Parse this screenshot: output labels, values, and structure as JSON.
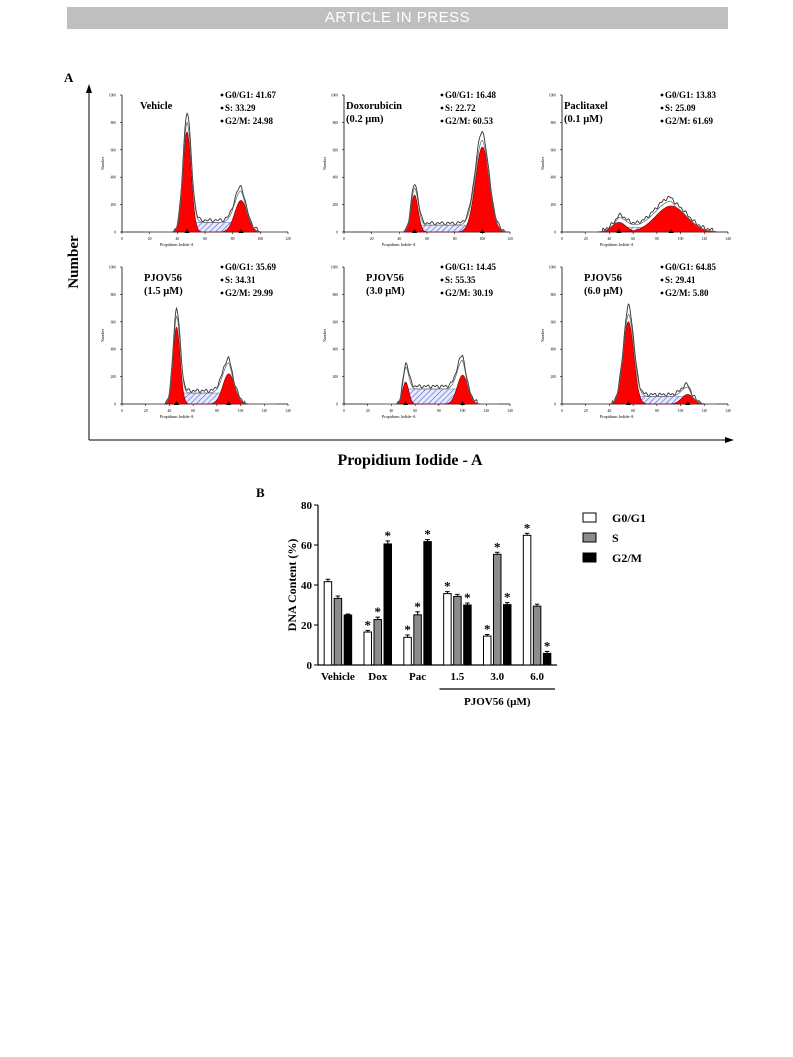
{
  "banner": "ARTICLE IN PRESS",
  "figure": {
    "panel_a_label": "A",
    "panel_b_label": "B",
    "a_ylabel": "Number",
    "a_xlabel": "Propidium Iodide - A",
    "hist_ylabel": "Number",
    "hist_xlabel": "Propidium Iodide-A",
    "hist_yticks": [
      "0",
      "200",
      "400",
      "600",
      "800",
      "1000"
    ],
    "hist_xticks_120": [
      "0",
      "20",
      "40",
      "60",
      "80",
      "100",
      "120"
    ],
    "hist_xticks_140": [
      "0",
      "20",
      "40",
      "60",
      "80",
      "100",
      "120",
      "140"
    ],
    "panels": [
      {
        "title": [
          "Vehicle"
        ],
        "stats": [
          "G0/G1: 41.67",
          "S: 33.29",
          "G2/M: 24.98"
        ],
        "axis_max": 120,
        "g1": {
          "mean": 47,
          "peak": 730,
          "sd": 3.0
        },
        "g2": {
          "mean": 86,
          "peak": 230,
          "sd": 4.5
        },
        "s_level": 70
      },
      {
        "title": [
          "Doxorubicin",
          "(0.2 µm)"
        ],
        "stats": [
          "G0/G1: 16.48",
          "S: 22.72",
          "G2/M: 60.53"
        ],
        "axis_max": 120,
        "g1": {
          "mean": 51,
          "peak": 270,
          "sd": 2.6
        },
        "g2": {
          "mean": 100,
          "peak": 620,
          "sd": 5.0
        },
        "s_level": 50
      },
      {
        "title": [
          "Paclitaxel",
          "(0.1 µM)"
        ],
        "stats": [
          "G0/G1: 13.83",
          "S: 25.09",
          "G2/M: 61.69"
        ],
        "axis_max": 140,
        "g1": {
          "mean": 48,
          "peak": 70,
          "sd": 6.0
        },
        "g2": {
          "mean": 92,
          "peak": 190,
          "sd": 13.0
        },
        "s_level": 35
      },
      {
        "title": [
          "PJOV56",
          "(1.5 µM)"
        ],
        "stats": [
          "G0/G1: 35.69",
          "S: 34.31",
          "G2/M: 29.99"
        ],
        "axis_max": 140,
        "g1": {
          "mean": 46,
          "peak": 560,
          "sd": 3.0
        },
        "g2": {
          "mean": 90,
          "peak": 220,
          "sd": 5.0
        },
        "s_level": 80
      },
      {
        "title": [
          "PJOV56",
          "(3.0 µM)"
        ],
        "stats": [
          "G0/G1: 14.45",
          "S: 55.35",
          "G2/M: 30.19"
        ],
        "axis_max": 140,
        "g1": {
          "mean": 52,
          "peak": 160,
          "sd": 2.6
        },
        "g2": {
          "mean": 100,
          "peak": 210,
          "sd": 4.5
        },
        "s_level": 110
      },
      {
        "title": [
          "PJOV56",
          "(6.0 µM)"
        ],
        "stats": [
          "G0/G1: 64.85",
          "S: 29.41",
          "G2/M: 5.80"
        ],
        "axis_max": 140,
        "g1": {
          "mean": 56,
          "peak": 600,
          "sd": 4.5
        },
        "g2": {
          "mean": 106,
          "peak": 70,
          "sd": 5.0
        },
        "s_level": 55
      }
    ]
  },
  "chart_data": {
    "type": "bar",
    "categories": [
      "Vehicle",
      "Dox",
      "Pac",
      "1.5",
      "3.0",
      "6.0"
    ],
    "group_label": "PJOV56 (µM)",
    "ylabel": "DNA Content (%)",
    "xlabel": "",
    "ylim": [
      0,
      80
    ],
    "yticks": [
      0,
      20,
      40,
      60,
      80
    ],
    "series": [
      {
        "name": "G0/G1",
        "color": "#ffffff",
        "values": [
          41.67,
          16.48,
          13.83,
          35.69,
          14.45,
          64.85
        ],
        "significant": [
          false,
          true,
          true,
          true,
          true,
          true
        ]
      },
      {
        "name": "S",
        "color": "#8c8c8c",
        "values": [
          33.29,
          22.72,
          25.09,
          34.31,
          55.35,
          29.41
        ],
        "significant": [
          false,
          true,
          true,
          false,
          true,
          false
        ]
      },
      {
        "name": "G2/M",
        "color": "#000000",
        "values": [
          24.98,
          60.53,
          61.69,
          29.99,
          30.19,
          5.8
        ],
        "significant": [
          false,
          true,
          true,
          true,
          true,
          true
        ]
      }
    ],
    "errors": [
      [
        1.2,
        0.8,
        1.2,
        1.0,
        0.8,
        1.0
      ],
      [
        1.2,
        1.2,
        1.5,
        1.0,
        1.0,
        1.0
      ],
      [
        0.5,
        1.5,
        1.0,
        1.0,
        1.0,
        1.0
      ]
    ],
    "significance_marker": "*",
    "legend_position": "right"
  }
}
